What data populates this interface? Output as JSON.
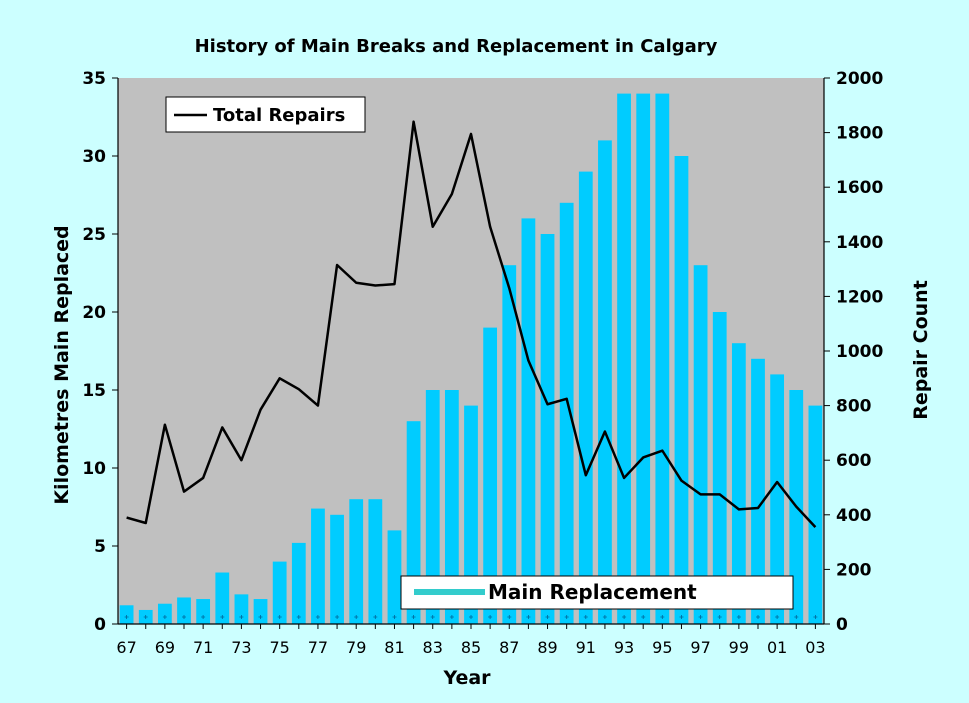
{
  "colors": {
    "background": "#ccffff",
    "plot_area": "#c0c0c0",
    "bar": "#00ccff",
    "line": "#000000",
    "legend_bar_swatch": "#33cccc"
  },
  "chart_data": {
    "type": "bar",
    "title": "History of Main Breaks and Replacement in Calgary",
    "xlabel": "Year",
    "ylabel_left": "Kilometres Main Replaced",
    "ylabel_right": "Repair Count",
    "categories": [
      "67",
      "68",
      "69",
      "70",
      "71",
      "72",
      "73",
      "74",
      "75",
      "76",
      "77",
      "78",
      "79",
      "80",
      "81",
      "82",
      "83",
      "84",
      "85",
      "86",
      "87",
      "88",
      "89",
      "90",
      "91",
      "92",
      "93",
      "94",
      "95",
      "96",
      "97",
      "98",
      "99",
      "00",
      "01",
      "02",
      "03"
    ],
    "x_tick_labels": [
      "67",
      "69",
      "71",
      "73",
      "75",
      "77",
      "79",
      "81",
      "83",
      "85",
      "87",
      "89",
      "91",
      "93",
      "95",
      "97",
      "99",
      "01",
      "03"
    ],
    "ylim_left": [
      0,
      35
    ],
    "left_ticks": [
      "0",
      "5",
      "10",
      "15",
      "20",
      "25",
      "30",
      "35"
    ],
    "ylim_right": [
      0,
      2000
    ],
    "right_ticks": [
      "0",
      "200",
      "400",
      "600",
      "800",
      "1000",
      "1200",
      "1400",
      "1600",
      "1800",
      "2000"
    ],
    "grid": false,
    "legend_placement": "top-left (line), bottom-center (bar)",
    "series": [
      {
        "name": "Main Replacement",
        "type": "bar",
        "axis": "left",
        "values": [
          1.2,
          0.9,
          1.3,
          1.7,
          1.6,
          3.3,
          1.9,
          1.6,
          4.0,
          5.2,
          7.4,
          7.0,
          8.0,
          8.0,
          6.0,
          13.0,
          15.0,
          15.0,
          14.0,
          19.0,
          23.0,
          26.0,
          25.0,
          27.0,
          29.0,
          31.0,
          34.0,
          34.0,
          34.0,
          30.0,
          23.0,
          20.0,
          18.0,
          17.0,
          16.0,
          15.0,
          14.0
        ]
      },
      {
        "name": "Total Repairs",
        "type": "line",
        "axis": "right",
        "values": [
          390,
          370,
          730,
          485,
          535,
          720,
          600,
          785,
          900,
          860,
          800,
          1315,
          1250,
          1240,
          1245,
          1840,
          1455,
          1575,
          1795,
          1455,
          1230,
          965,
          805,
          825,
          545,
          705,
          535,
          610,
          635,
          525,
          475,
          475,
          420,
          425,
          520,
          430,
          355
        ]
      }
    ]
  }
}
